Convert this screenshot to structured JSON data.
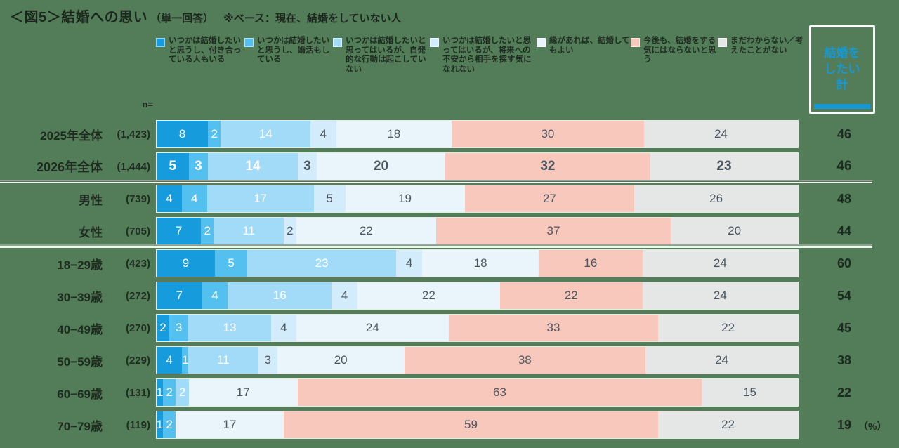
{
  "title": {
    "main": "＜図5＞結婚への思い",
    "sub": "（単一回答）",
    "note": "※ベース：現在、結婚をしていない人"
  },
  "n_header": "n=",
  "percent_label": "（%）",
  "total_box": {
    "lines": [
      "結婚を",
      "したい",
      "計"
    ]
  },
  "colors": {
    "background": "#537d58",
    "accent_blue": "#1798d6",
    "pink": "#f9c8bc",
    "gray": "#e5e7e7",
    "dark_text": "#1e2c20"
  },
  "chart_data": {
    "type": "bar",
    "subtype": "stacked-100-horizontal",
    "unit": "%",
    "title": "＜図5＞結婚への思い（単一回答）",
    "base_note": "※ベース：現在、結婚をしていない人",
    "total_column_label": "結婚をしたい計",
    "categories": [
      "いつかは結婚したいと思うし、付き合っている人もいる",
      "いつかは結婚したいと思うし、婚活もしている",
      "いつかは結婚したいと思ってはいるが、自発的な行動は起こしていない",
      "いつかは結婚したいと思ってはいるが、将来への不安から相手を探す気になれない",
      "縁があれば、結婚してもよい",
      "今後も、結婚をする気にはならないと思う",
      "まだわからない／考えたことがない"
    ],
    "category_colors": [
      "#169bdc",
      "#53c0ef",
      "#a2dbf7",
      "#d3ecfb",
      "#e9f4fb",
      "#f9c8bc",
      "#e5e7e7"
    ],
    "label_text_style": [
      "light",
      "light",
      "light",
      "dark",
      "dark",
      "dark",
      "dark"
    ],
    "rows": [
      {
        "label": "2025年全体",
        "n": "(1,423)",
        "values": [
          8,
          2,
          14,
          4,
          18,
          30,
          24
        ],
        "total": 46,
        "emphasis": false
      },
      {
        "label": "2026年全体",
        "n": "(1,444)",
        "values": [
          5,
          3,
          14,
          3,
          20,
          32,
          23
        ],
        "total": 46,
        "emphasis": true
      },
      {
        "label": "男性",
        "n": "(739)",
        "values": [
          4,
          4,
          17,
          5,
          19,
          27,
          26
        ],
        "total": 48,
        "emphasis": false
      },
      {
        "label": "女性",
        "n": "(705)",
        "values": [
          7,
          2,
          11,
          2,
          22,
          37,
          20
        ],
        "total": 44,
        "emphasis": false
      },
      {
        "label": "18−29歳",
        "n": "(423)",
        "values": [
          9,
          5,
          23,
          4,
          18,
          16,
          24
        ],
        "total": 60,
        "emphasis": false
      },
      {
        "label": "30−39歳",
        "n": "(272)",
        "values": [
          7,
          4,
          16,
          4,
          22,
          22,
          24
        ],
        "total": 54,
        "emphasis": false
      },
      {
        "label": "40−49歳",
        "n": "(270)",
        "values": [
          2,
          3,
          13,
          4,
          24,
          33,
          22
        ],
        "total": 45,
        "emphasis": false
      },
      {
        "label": "50−59歳",
        "n": "(229)",
        "values": [
          4,
          1,
          11,
          3,
          20,
          38,
          24
        ],
        "total": 38,
        "emphasis": false
      },
      {
        "label": "60−69歳",
        "n": "(131)",
        "values": [
          1,
          2,
          2,
          0,
          17,
          63,
          15
        ],
        "total": 22,
        "emphasis": false
      },
      {
        "label": "70−79歳",
        "n": "(119)",
        "values": [
          1,
          2,
          0,
          0,
          17,
          59,
          22
        ],
        "total": 19,
        "emphasis": false
      }
    ],
    "separators_after_row_index": [
      1,
      3
    ],
    "legend_position": "top",
    "grid": false
  }
}
